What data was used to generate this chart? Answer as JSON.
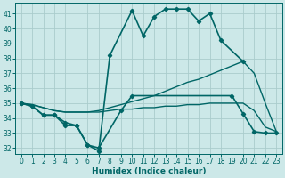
{
  "xlabel": "Humidex (Indice chaleur)",
  "bg_color": "#cce8e8",
  "grid_color": "#aacccc",
  "line_color": "#006666",
  "xlim": [
    -0.5,
    23.5
  ],
  "ylim": [
    31.6,
    41.7
  ],
  "yticks": [
    32,
    33,
    34,
    35,
    36,
    37,
    38,
    39,
    40,
    41
  ],
  "xticks": [
    0,
    1,
    2,
    3,
    4,
    5,
    6,
    7,
    8,
    9,
    10,
    11,
    12,
    13,
    14,
    15,
    16,
    17,
    18,
    19,
    20,
    21,
    22,
    23
  ],
  "line1_x": [
    0,
    1,
    2,
    3,
    4,
    5,
    6,
    7,
    8,
    10,
    11,
    12,
    13,
    14,
    15,
    16,
    17,
    18,
    20
  ],
  "line1_y": [
    35.0,
    34.8,
    34.2,
    34.2,
    33.7,
    33.5,
    32.2,
    31.8,
    38.2,
    41.2,
    39.5,
    40.8,
    41.3,
    41.3,
    41.3,
    40.5,
    41.0,
    39.2,
    37.8
  ],
  "line2_x": [
    0,
    1,
    2,
    3,
    4,
    5,
    6,
    7,
    9,
    10,
    19,
    20,
    21,
    22,
    23
  ],
  "line2_y": [
    35.0,
    34.8,
    34.2,
    34.2,
    33.5,
    33.5,
    32.2,
    32.0,
    34.5,
    35.5,
    35.5,
    34.3,
    33.1,
    33.0,
    33.0
  ],
  "line3_x": [
    0,
    1,
    2,
    3,
    4,
    5,
    6,
    7,
    8,
    9,
    10,
    11,
    12,
    13,
    14,
    15,
    16,
    17,
    18,
    19,
    20,
    21,
    22,
    23
  ],
  "line3_y": [
    35.0,
    34.9,
    34.7,
    34.5,
    34.4,
    34.4,
    34.4,
    34.5,
    34.7,
    34.9,
    35.1,
    35.3,
    35.5,
    35.8,
    36.1,
    36.4,
    36.6,
    36.9,
    37.2,
    37.5,
    37.8,
    37.0,
    35.0,
    33.1
  ],
  "line4_x": [
    0,
    1,
    2,
    3,
    4,
    5,
    6,
    7,
    8,
    9,
    10,
    11,
    12,
    13,
    14,
    15,
    16,
    17,
    18,
    19,
    20,
    21,
    22,
    23
  ],
  "line4_y": [
    35.0,
    34.9,
    34.7,
    34.5,
    34.4,
    34.4,
    34.4,
    34.4,
    34.5,
    34.6,
    34.6,
    34.7,
    34.7,
    34.8,
    34.8,
    34.9,
    34.9,
    35.0,
    35.0,
    35.0,
    35.0,
    34.5,
    33.4,
    33.1
  ]
}
